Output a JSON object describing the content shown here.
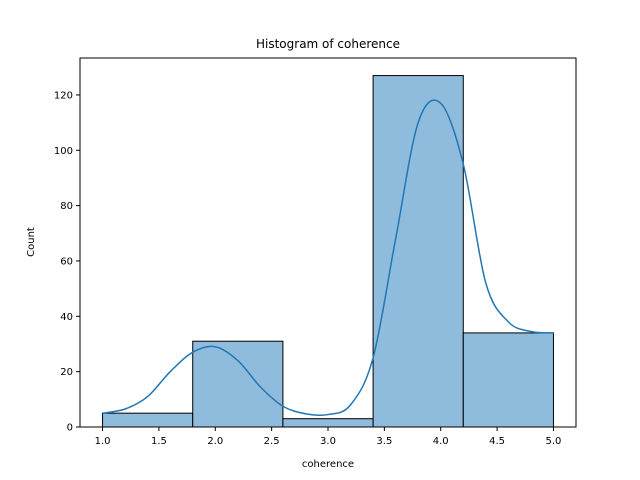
{
  "chart_data": {
    "type": "bar",
    "subtype": "histogram-with-kde",
    "title": "Histogram of coherence",
    "xlabel": "coherence",
    "ylabel": "Count",
    "xlim": [
      0.8,
      5.2
    ],
    "ylim": [
      0,
      133.35
    ],
    "xticks": [
      1.0,
      1.5,
      2.0,
      2.5,
      3.0,
      3.5,
      4.0,
      4.5,
      5.0
    ],
    "xtick_labels": [
      "1.0",
      "1.5",
      "2.0",
      "2.5",
      "3.0",
      "3.5",
      "4.0",
      "4.5",
      "5.0"
    ],
    "yticks": [
      0,
      20,
      40,
      60,
      80,
      100,
      120
    ],
    "ytick_labels": [
      "0",
      "20",
      "40",
      "60",
      "80",
      "100",
      "120"
    ],
    "grid": false,
    "bars": [
      {
        "x0": 1.0,
        "x1": 1.8,
        "value": 5
      },
      {
        "x0": 1.8,
        "x1": 2.6,
        "value": 31
      },
      {
        "x0": 2.6,
        "x1": 3.4,
        "value": 3
      },
      {
        "x0": 3.4,
        "x1": 4.2,
        "value": 127
      },
      {
        "x0": 4.2,
        "x1": 5.0,
        "value": 34
      }
    ],
    "kde": {
      "x": [
        1.0,
        1.2,
        1.4,
        1.6,
        1.8,
        2.0,
        2.2,
        2.4,
        2.6,
        2.8,
        3.0,
        3.2,
        3.4,
        3.6,
        3.8,
        4.0,
        4.2,
        4.4,
        4.6,
        4.8,
        5.0
      ],
      "y": [
        5.0,
        6.5,
        11.0,
        20.0,
        27.0,
        29.0,
        24.0,
        14.5,
        7.5,
        4.8,
        4.5,
        8.0,
        25.0,
        68.0,
        110.0,
        117.0,
        95.0,
        52.0,
        38.0,
        34.5,
        34.0
      ]
    },
    "colors": {
      "bar_fill": "#8fbbdc",
      "bar_edge": "#000000",
      "kde_line": "#1f77b4"
    }
  }
}
